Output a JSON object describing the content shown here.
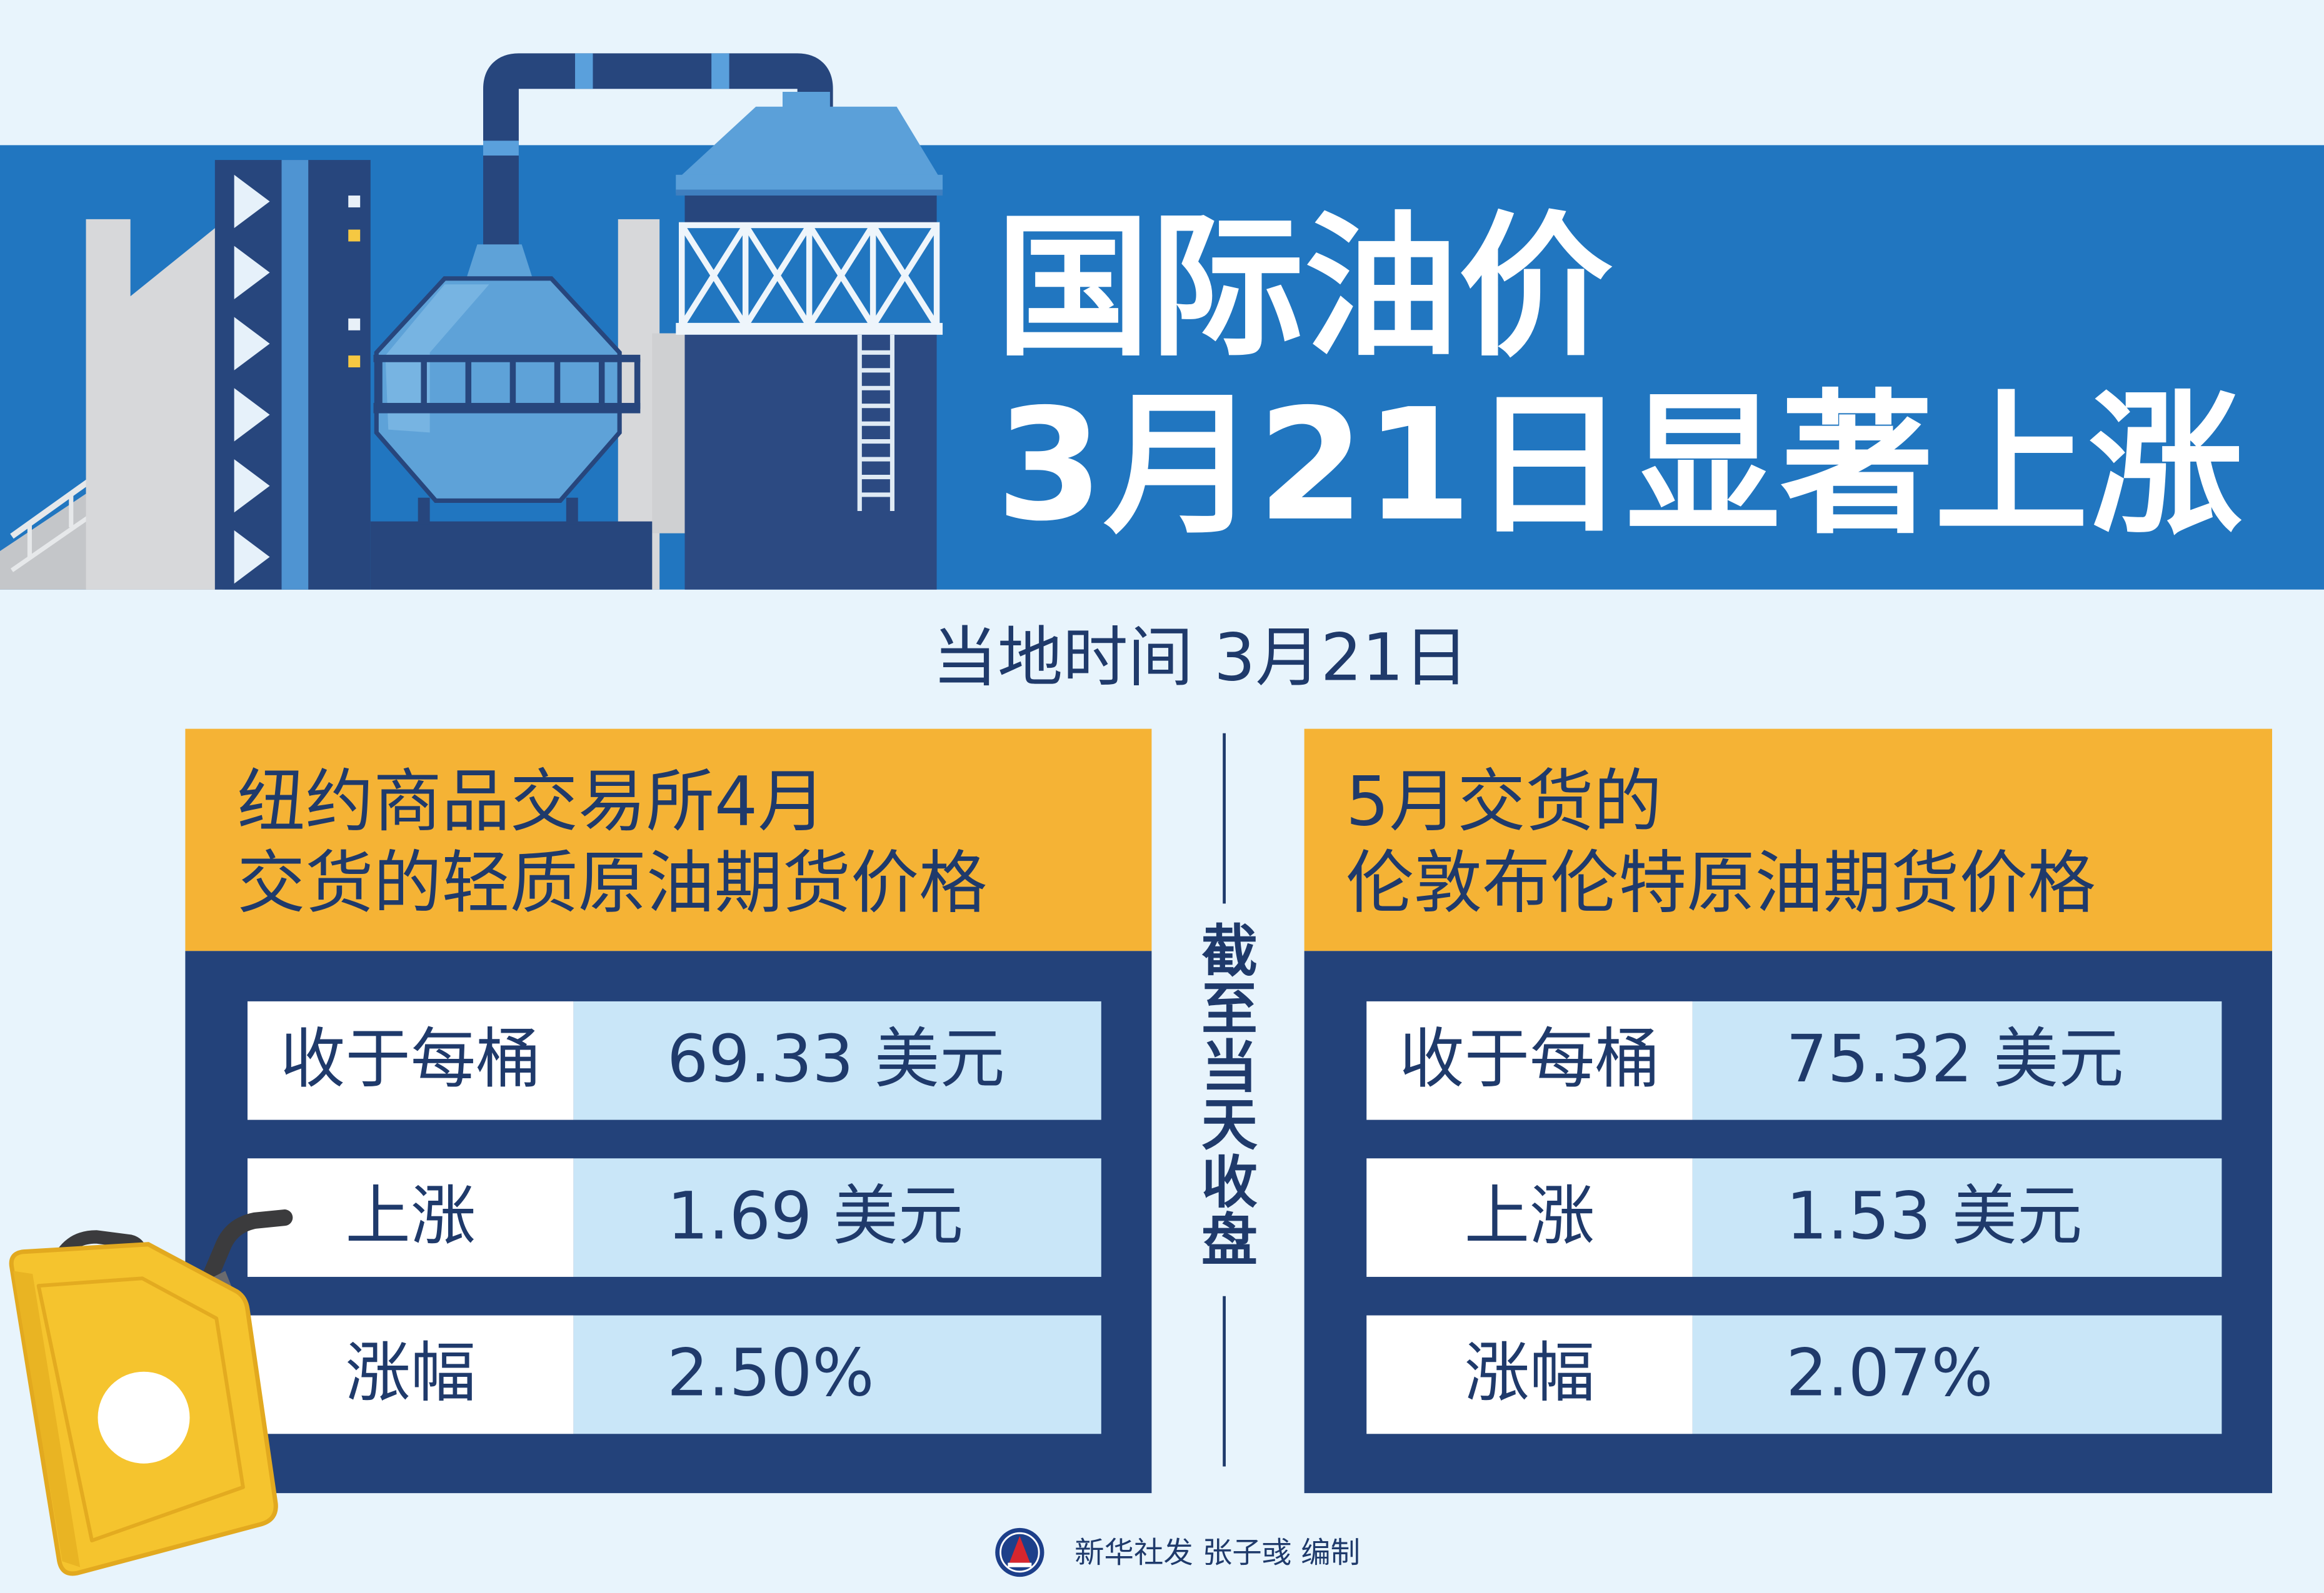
{
  "title": {
    "line1": "国际油价",
    "line2": "3月21日显著上涨"
  },
  "subtitle": "当地时间 3月21日",
  "divider_label": "截至当天收盘",
  "cards": [
    {
      "header_line1": "纽约商品交易所4月",
      "header_line2": "交货的轻质原油期货价格",
      "rows": [
        {
          "label": "收于每桶",
          "value": "69.33 美元"
        },
        {
          "label": "上涨",
          "value": "1.69 美元"
        },
        {
          "label": "涨幅",
          "value": "2.50%"
        }
      ]
    },
    {
      "header_line1": "5月交货的",
      "header_line2": "伦敦布伦特原油期货价格",
      "rows": [
        {
          "label": "收于每桶",
          "value": "75.32 美元"
        },
        {
          "label": "上涨",
          "value": "1.53 美元"
        },
        {
          "label": "涨幅",
          "value": "2.07%"
        }
      ]
    }
  ],
  "footer": {
    "credit": "新华社发 张子彧 编制"
  },
  "icons": {
    "illustration": "oil-refinery-factory-icon",
    "decoration": "jerry-can-icon",
    "logo": "xinhua-logo-icon"
  },
  "colors": {
    "background": "#e8f4fc",
    "banner": "#2176c0",
    "card_header": "#f5b335",
    "card_body": "#23427a",
    "label_cell": "#ffffff",
    "value_cell": "#c9e6f8",
    "text": "#1f3a6b"
  }
}
